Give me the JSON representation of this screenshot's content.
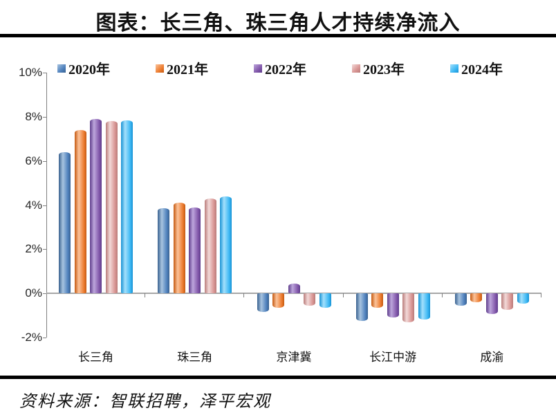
{
  "title": "图表：长三角、珠三角人才持续净流入",
  "source": "资料来源：智联招聘，泽平宏观",
  "chart_data": {
    "type": "bar",
    "title": "图表：长三角、珠三角人才持续净流入",
    "categories": [
      "长三角",
      "珠三角",
      "京津冀",
      "长江中游",
      "成渝"
    ],
    "series": [
      {
        "name": "2020年",
        "color": "#4f81bd",
        "color_light": "#a8c4e0",
        "color_dark": "#39618f",
        "values": [
          6.4,
          3.85,
          -0.85,
          -1.25,
          -0.55
        ]
      },
      {
        "name": "2021年",
        "color": "#ed7d31",
        "color_light": "#fbc39b",
        "color_dark": "#c55a11",
        "values": [
          7.4,
          4.1,
          -0.65,
          -0.65,
          -0.4
        ]
      },
      {
        "name": "2022年",
        "color": "#8359ab",
        "color_light": "#bda6dc",
        "color_dark": "#5f3d8c",
        "values": [
          7.9,
          3.9,
          0.45,
          -1.1,
          -0.95
        ]
      },
      {
        "name": "2023年",
        "color": "#d99694",
        "color_light": "#f2d9d8",
        "color_dark": "#b97c7a",
        "values": [
          7.8,
          4.3,
          -0.55,
          -1.3,
          -0.75
        ]
      },
      {
        "name": "2024年",
        "color": "#3fb9f4",
        "color_light": "#a3e0fc",
        "color_dark": "#1792d4",
        "values": [
          7.85,
          4.4,
          -0.65,
          -1.2,
          -0.45
        ]
      }
    ],
    "yticks": [
      {
        "label": "10%",
        "value": 10
      },
      {
        "label": "8%",
        "value": 8
      },
      {
        "label": "6%",
        "value": 6
      },
      {
        "label": "4%",
        "value": 4
      },
      {
        "label": "2%",
        "value": 2
      },
      {
        "label": "0%",
        "value": 0
      },
      {
        "label": "-2%",
        "value": -2
      }
    ],
    "ylim": [
      -2,
      10
    ],
    "grid": false,
    "legend_position": "top",
    "axis_color": "#808080",
    "zero_line_color": "#a6a6a6"
  }
}
